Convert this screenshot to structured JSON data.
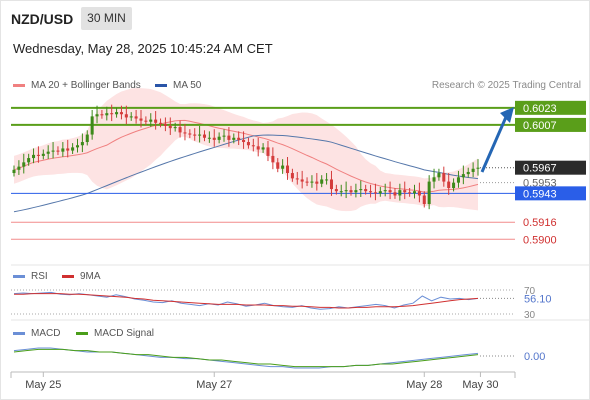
{
  "header": {
    "pair": "NZD/USD",
    "timeframe": "30 MIN",
    "datetime": "Wednesday, May 28, 2025 10:45:24 AM CET",
    "credit": "Research © 2025 Trading Central"
  },
  "colors": {
    "bollinger": "#f08080",
    "band_fill": "#fde3e3",
    "ma50": "#5577aa",
    "resistance": "#5a9e1a",
    "support": "#2a5ee8",
    "pivot_red": "#f28c8c",
    "candle_up": "#3d8a1a",
    "candle_down": "#d43c3c",
    "arrow": "#2466b4",
    "rsi": "#6b8fd6",
    "rsi_ma": "#d03030",
    "macd": "#6b8fd6",
    "macd_signal": "#4a9e1a"
  },
  "chart_data": [
    {
      "type": "candlestick",
      "title": "NZD/USD",
      "legend": [
        "MA 20 + Bollinger Bands",
        "MA 50"
      ],
      "ylim": [
        0.589,
        0.6035
      ],
      "levels": [
        {
          "value": 0.6023,
          "label": "0.6023",
          "kind": "resistance"
        },
        {
          "value": 0.6007,
          "label": "0.6007",
          "kind": "resistance"
        },
        {
          "value": 0.5967,
          "label": "0.5967",
          "kind": "last"
        },
        {
          "value": 0.5953,
          "label": "0.5953",
          "kind": "pivot"
        },
        {
          "value": 0.5943,
          "label": "0.5943",
          "kind": "support"
        },
        {
          "value": 0.5916,
          "label": "0.5916",
          "kind": "support-minor"
        },
        {
          "value": 0.59,
          "label": "0.5900",
          "kind": "support-minor"
        }
      ],
      "forecast": {
        "from": 0.5963,
        "to": 0.602,
        "direction": "up"
      },
      "closes": [
        0.5965,
        0.5968,
        0.5972,
        0.5976,
        0.5979,
        0.5978,
        0.598,
        0.5982,
        0.5983,
        0.5982,
        0.5985,
        0.5983,
        0.5986,
        0.5988,
        0.5991,
        0.5998,
        0.6015,
        0.6017,
        0.6016,
        0.6018,
        0.6017,
        0.6019,
        0.6017,
        0.6014,
        0.6015,
        0.6013,
        0.6011,
        0.601,
        0.6012,
        0.6009,
        0.6008,
        0.6006,
        0.6004,
        0.6005,
        0.6,
        0.5999,
        0.5998,
        0.5997,
        0.5998,
        0.5995,
        0.5995,
        0.5993,
        0.5996,
        0.5997,
        0.5993,
        0.5995,
        0.5993,
        0.5991,
        0.5988,
        0.5987,
        0.5984,
        0.5986,
        0.5978,
        0.5972,
        0.5966,
        0.5969,
        0.5962,
        0.5957,
        0.5956,
        0.5954,
        0.5953,
        0.5954,
        0.5952,
        0.5956,
        0.5956,
        0.5947,
        0.5945,
        0.5945,
        0.5946,
        0.5944,
        0.5946,
        0.5947,
        0.5945,
        0.5944,
        0.5943,
        0.5945,
        0.5946,
        0.5944,
        0.5941,
        0.5946,
        0.5944,
        0.5943,
        0.5945,
        0.5941,
        0.5933,
        0.5954,
        0.5958,
        0.5962,
        0.5954,
        0.5948,
        0.5953,
        0.5958,
        0.5961,
        0.5963,
        0.5966,
        0.5967
      ],
      "x_ticks": [
        "May 25",
        "May 27",
        "May 28",
        "May 30"
      ]
    },
    {
      "type": "line",
      "title": "RSI",
      "legend": [
        "RSI",
        "9MA"
      ],
      "ylim": [
        25,
        75
      ],
      "ticks": [
        {
          "value": 70,
          "label": "70"
        },
        {
          "value": 30,
          "label": "30"
        }
      ],
      "last_value": {
        "value": 56.1,
        "label": "56.10"
      },
      "series": [
        {
          "name": "RSI",
          "values": [
            64,
            65,
            64,
            65,
            66,
            63,
            62,
            64,
            62,
            60,
            58,
            62,
            59,
            55,
            53,
            50,
            49,
            52,
            48,
            46,
            44,
            47,
            45,
            50,
            47,
            43,
            45,
            48,
            44,
            42,
            41,
            44,
            40,
            38,
            39,
            42,
            40,
            42,
            44,
            46,
            44,
            40,
            45,
            48,
            60,
            52,
            58,
            55,
            56,
            54,
            56
          ]
        },
        {
          "name": "9MA",
          "values": [
            63,
            63,
            64,
            64,
            64,
            64,
            63,
            63,
            62,
            61,
            60,
            59,
            58,
            56,
            55,
            53,
            52,
            51,
            50,
            49,
            48,
            47,
            46,
            46,
            46,
            45,
            45,
            45,
            44,
            44,
            43,
            43,
            42,
            41,
            41,
            40,
            40,
            41,
            41,
            42,
            42,
            42,
            43,
            44,
            46,
            48,
            50,
            52,
            54,
            55,
            56
          ]
        }
      ]
    },
    {
      "type": "line",
      "title": "MACD",
      "legend": [
        "MACD",
        "MACD Signal"
      ],
      "ylim": [
        -0.0012,
        0.0012
      ],
      "last_value": {
        "value": 0.0,
        "label": "0.00"
      },
      "series": [
        {
          "name": "MACD",
          "values": [
            0.0004,
            0.0005,
            0.0006,
            0.0006,
            0.0005,
            0.0004,
            0.0003,
            0.0003,
            0.0003,
            0.0002,
            0.0001,
            0.0,
            -0.0001,
            -0.0001,
            -0.0002,
            -0.0002,
            -0.0003,
            -0.0004,
            -0.0005,
            -0.0006,
            -0.0007,
            -0.0008,
            -0.0008,
            -0.0009,
            -0.0009,
            -0.0009,
            -0.0008,
            -0.0008,
            -0.0007,
            -0.0007,
            -0.0006,
            -0.0005,
            -0.0004,
            -0.0003,
            -0.0002,
            -0.0001,
            0.0,
            0.0001,
            0.0002
          ]
        },
        {
          "name": "MACD Signal",
          "values": [
            0.0003,
            0.0004,
            0.0005,
            0.0005,
            0.0005,
            0.0004,
            0.0004,
            0.0003,
            0.0003,
            0.0002,
            0.0001,
            0.0001,
            0.0,
            -0.0001,
            -0.0001,
            -0.0002,
            -0.0003,
            -0.0003,
            -0.0004,
            -0.0005,
            -0.0006,
            -0.0006,
            -0.0007,
            -0.0008,
            -0.0008,
            -0.0008,
            -0.0008,
            -0.0008,
            -0.0007,
            -0.0007,
            -0.0006,
            -0.0006,
            -0.0005,
            -0.0004,
            -0.0003,
            -0.0002,
            -0.0001,
            0.0,
            0.0001
          ]
        }
      ]
    }
  ]
}
